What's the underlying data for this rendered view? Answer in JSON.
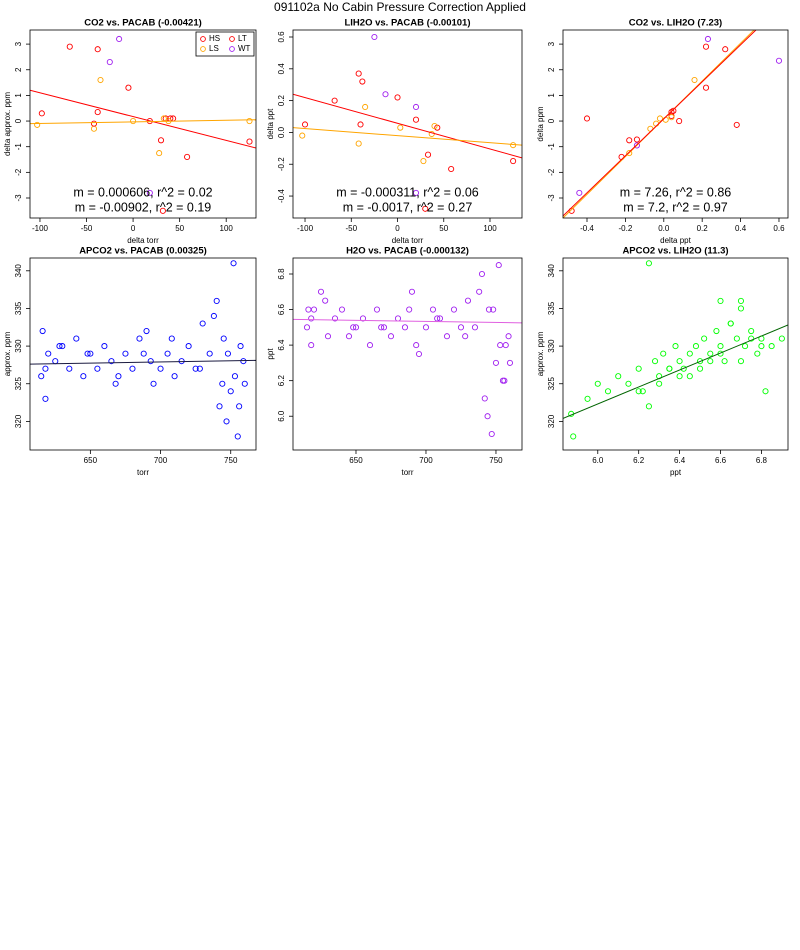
{
  "title": "091102a   No Cabin Pressure Correction Applied",
  "chart_data": [
    {
      "type": "scatter",
      "title": "CO2 vs. PACAB (-0.00421)",
      "xlabel": "delta torr",
      "ylabel": "delta approx. ppm",
      "xlim": [
        -110.7,
        132
      ],
      "ylim": [
        -3.78,
        3.55
      ],
      "xticks": [
        -100,
        -50,
        0,
        50,
        100
      ],
      "yticks": [
        -3,
        -2,
        -1,
        0,
        1,
        2,
        3
      ],
      "legend": "topright",
      "series": [
        {
          "name": "HS",
          "color": "#ff0000",
          "x": [
            -98,
            -38,
            -38,
            -5,
            30,
            35,
            43,
            32,
            125
          ],
          "values": [
            0.3,
            2.8,
            0.35,
            1.3,
            -0.75,
            0.1,
            0.1,
            -3.5,
            -0.8
          ]
        },
        {
          "name": "LS",
          "color": "#ffa500",
          "x": [
            -103,
            -42,
            -35,
            0,
            28,
            33,
            38,
            125
          ],
          "values": [
            -0.15,
            -0.3,
            1.6,
            0,
            -1.25,
            0.1,
            0,
            0
          ]
        },
        {
          "name": "LT",
          "color": "#ff0000",
          "x": [
            -68,
            -42,
            58,
            18,
            40
          ],
          "values": [
            2.9,
            -0.1,
            -1.4,
            0,
            0.1
          ]
        },
        {
          "name": "WT",
          "color": "#a020f0",
          "x": [
            -25,
            -15,
            18
          ],
          "values": [
            2.3,
            3.2,
            -2.8
          ]
        }
      ],
      "fits": [
        {
          "color": "#ff0000",
          "x": [
            -110.7,
            132
          ],
          "values": [
            1.2,
            -1.05
          ]
        },
        {
          "color": "#ffa500",
          "x": [
            -110.7,
            132
          ],
          "values": [
            -0.1,
            0.05
          ]
        }
      ],
      "annotations": [
        {
          "text": "m = 0.000606, r^2 = 0.02",
          "color": "#ffa500"
        },
        {
          "text": "m = -0.00902, r^2 = 0.19",
          "color": "#ff0000"
        }
      ]
    },
    {
      "type": "scatter",
      "title": "LIH2O vs. PACAB (-0.00101)",
      "xlabel": "delta torr",
      "ylabel": "delta ppt",
      "xlim": [
        -113,
        134.6
      ],
      "ylim": [
        -0.538,
        0.644
      ],
      "xticks": [
        -100,
        -50,
        0,
        50,
        100
      ],
      "yticks": [
        -0.4,
        -0.2,
        {
          "value": 0,
          "label": "0.0"
        },
        0.2,
        0.4,
        0.6
      ],
      "series": [
        {
          "name": "HS",
          "color": "#ff0000",
          "x": [
            -100,
            -38,
            -40,
            0,
            33,
            43,
            30,
            125
          ],
          "values": [
            0.05,
            0.32,
            0.05,
            0.22,
            -0.14,
            0.03,
            -0.48,
            -0.18
          ]
        },
        {
          "name": "LS",
          "color": "#ffa500",
          "x": [
            -103,
            -42,
            -35,
            3,
            28,
            37,
            40,
            125
          ],
          "values": [
            -0.02,
            -0.07,
            0.16,
            0.03,
            -0.18,
            -0.01,
            0.04,
            -0.08
          ]
        },
        {
          "name": "LT",
          "color": "#ff0000",
          "x": [
            -68,
            -42,
            20,
            58
          ],
          "values": [
            0.2,
            0.37,
            0.08,
            -0.23
          ]
        },
        {
          "name": "WT",
          "color": "#a020f0",
          "x": [
            -25,
            -13,
            20,
            20
          ],
          "values": [
            0.6,
            0.24,
            0.16,
            -0.38
          ]
        }
      ],
      "fits": [
        {
          "color": "#ff0000",
          "x": [
            -113,
            134.6
          ],
          "values": [
            0.24,
            -0.16
          ]
        },
        {
          "color": "#ffa500",
          "x": [
            -113,
            134.6
          ],
          "values": [
            0.03,
            -0.08
          ]
        }
      ],
      "annotations": [
        {
          "text": "m = -0.000311, r^2 = 0.06",
          "color": "#ffa500"
        },
        {
          "text": "m = -0.0017, r^2 = 0.27",
          "color": "#ff0000"
        }
      ]
    },
    {
      "type": "scatter",
      "title": "CO2 vs. LIH2O (7.23)",
      "xlabel": "delta ppt",
      "ylabel": "delta ppm",
      "xlim": [
        -0.525,
        0.647
      ],
      "ylim": [
        -3.78,
        3.55
      ],
      "xticks": [
        -0.4,
        -0.2,
        {
          "value": 0,
          "label": "0.0"
        },
        0.2,
        0.4,
        0.6
      ],
      "yticks": [
        -3,
        -2,
        -1,
        0,
        1,
        2,
        3
      ],
      "series": [
        {
          "name": "HS",
          "color": "#ff0000",
          "x": [
            -0.48,
            -0.18,
            -0.14,
            0.04,
            0.04,
            0.05,
            0.22,
            0.32
          ],
          "values": [
            -3.5,
            -0.75,
            -0.72,
            0.35,
            0.2,
            0.4,
            1.3,
            2.8
          ]
        },
        {
          "name": "LS",
          "color": "#ffa500",
          "x": [
            -0.07,
            -0.04,
            0.04,
            0.16,
            -0.18,
            0.01,
            -0.02
          ],
          "values": [
            -0.3,
            -0.1,
            0.15,
            1.6,
            -1.25,
            0.05,
            0.1
          ]
        },
        {
          "name": "LT",
          "color": "#ff0000",
          "x": [
            -0.4,
            0.38,
            0.22,
            0.08,
            -0.22
          ],
          "values": [
            0.1,
            -0.15,
            2.9,
            0,
            -1.4
          ]
        },
        {
          "name": "WT",
          "color": "#a020f0",
          "x": [
            -0.44,
            -0.14,
            0.23,
            0.6
          ],
          "values": [
            -2.8,
            -0.95,
            3.2,
            2.35
          ]
        }
      ],
      "fits": [
        {
          "color": "#ffa500",
          "x": [
            -0.525,
            0.47
          ],
          "values": [
            -3.78,
            3.55
          ]
        },
        {
          "color": "#ff0000",
          "x": [
            -0.525,
            0.48
          ],
          "values": [
            -3.7,
            3.55
          ]
        }
      ],
      "annotations": [
        {
          "text": "m = 7.26, r^2 = 0.86",
          "color": "#ffa500"
        },
        {
          "text": "m = 7.2, r^2 = 0.97",
          "color": "#ff0000"
        }
      ]
    },
    {
      "type": "scatter",
      "title": "APCO2 vs. PACAB (0.00325)",
      "xlabel": "torr",
      "ylabel": "approx. ppm",
      "xlim": [
        607,
        768
      ],
      "ylim": [
        316.2,
        341.7
      ],
      "xticks": [
        650,
        700,
        750
      ],
      "yticks": [
        320,
        325,
        330,
        335,
        340
      ],
      "series": [
        {
          "color": "#0000ff",
          "x": [
            615,
            618,
            620,
            625,
            630,
            635,
            640,
            645,
            650,
            655,
            660,
            665,
            670,
            675,
            680,
            685,
            690,
            693,
            695,
            700,
            705,
            710,
            715,
            720,
            725,
            730,
            735,
            740,
            742,
            745,
            747,
            750,
            752,
            755,
            757,
            760,
            618,
            628,
            648,
            668,
            688,
            708,
            728,
            738,
            744,
            748,
            753,
            756,
            759,
            616
          ],
          "values": [
            326,
            323,
            329,
            328,
            330,
            327,
            331,
            326,
            329,
            327,
            330,
            328,
            326,
            329,
            327,
            331,
            332,
            328,
            325,
            327,
            329,
            326,
            328,
            330,
            327,
            333,
            329,
            336,
            322,
            331,
            320,
            324,
            341,
            318,
            330,
            325,
            327,
            330,
            329,
            325,
            329,
            331,
            327,
            334,
            325,
            329,
            326,
            322,
            328,
            332
          ]
        }
      ],
      "fits": [
        {
          "color": "#1a1a40",
          "x": [
            607,
            768
          ],
          "values": [
            327.6,
            328.1
          ]
        }
      ]
    },
    {
      "type": "scatter",
      "title": "H2O vs. PACAB (-0.000132)",
      "xlabel": "torr",
      "ylabel": "ppt",
      "xlim": [
        605,
        768.6
      ],
      "ylim": [
        5.81,
        6.89
      ],
      "xticks": [
        650,
        700,
        750
      ],
      "yticks": [
        {
          "value": 6,
          "label": "6.0"
        },
        6.2,
        6.4,
        6.6,
        6.8
      ],
      "series": [
        {
          "color": "#a020f0",
          "x": [
            615,
            618,
            620,
            625,
            630,
            635,
            640,
            645,
            650,
            655,
            660,
            665,
            670,
            675,
            680,
            685,
            690,
            693,
            695,
            700,
            705,
            710,
            715,
            720,
            725,
            730,
            735,
            740,
            742,
            745,
            747,
            750,
            752,
            755,
            757,
            760,
            618,
            628,
            648,
            668,
            688,
            708,
            728,
            738,
            744,
            748,
            753,
            756,
            759,
            616
          ],
          "values": [
            6.5,
            6.4,
            6.6,
            6.7,
            6.45,
            6.55,
            6.6,
            6.45,
            6.5,
            6.55,
            6.4,
            6.6,
            6.5,
            6.45,
            6.55,
            6.5,
            6.7,
            6.4,
            6.35,
            6.5,
            6.6,
            6.55,
            6.45,
            6.6,
            6.5,
            6.65,
            6.5,
            6.8,
            6.1,
            6.6,
            5.9,
            6.3,
            6.85,
            6.2,
            6.4,
            6.3,
            6.55,
            6.65,
            6.5,
            6.5,
            6.6,
            6.55,
            6.45,
            6.7,
            6,
            6.6,
            6.4,
            6.2,
            6.45,
            6.6
          ]
        }
      ],
      "fits": [
        {
          "color": "#e060e0",
          "x": [
            605,
            768.6
          ],
          "values": [
            6.545,
            6.525
          ]
        }
      ]
    },
    {
      "type": "scatter",
      "title": "APCO2 vs. LIH2O (11.3)",
      "xlabel": "ppt",
      "ylabel": "approx. ppm",
      "xlim": [
        5.83,
        6.93
      ],
      "ylim": [
        316.2,
        341.7
      ],
      "xticks": [
        {
          "value": 6,
          "label": "6.0"
        },
        6.2,
        6.4,
        6.6,
        6.8
      ],
      "yticks": [
        320,
        325,
        330,
        335,
        340
      ],
      "series": [
        {
          "color": "#00ff00",
          "x": [
            5.87,
            5.95,
            6,
            6.05,
            6.1,
            6.15,
            6.2,
            6.22,
            6.25,
            6.28,
            6.3,
            6.32,
            6.35,
            6.38,
            6.4,
            6.42,
            6.45,
            6.48,
            6.5,
            6.52,
            6.55,
            6.58,
            6.6,
            6.62,
            6.65,
            6.68,
            6.7,
            6.72,
            6.75,
            6.78,
            6.8,
            6.82,
            6.85,
            6.25,
            6.3,
            6.4,
            6.5,
            6.6,
            6.7,
            6.75,
            6.2,
            6.45,
            6.55,
            6.65,
            6.8,
            6.35,
            6.6,
            6.7,
            5.88,
            6.9
          ],
          "values": [
            321,
            323,
            325,
            324,
            326,
            325,
            327,
            324,
            341,
            328,
            326,
            329,
            327,
            330,
            328,
            327,
            329,
            330,
            328,
            331,
            329,
            332,
            330,
            328,
            333,
            331,
            335,
            330,
            332,
            329,
            331,
            324,
            330,
            322,
            325,
            326,
            327,
            336,
            328,
            331,
            324,
            326,
            328,
            333,
            330,
            327,
            329,
            336,
            318,
            331
          ]
        }
      ],
      "fits": [
        {
          "color": "#006400",
          "x": [
            5.83,
            6.93
          ],
          "values": [
            320.4,
            332.8
          ]
        }
      ]
    }
  ]
}
